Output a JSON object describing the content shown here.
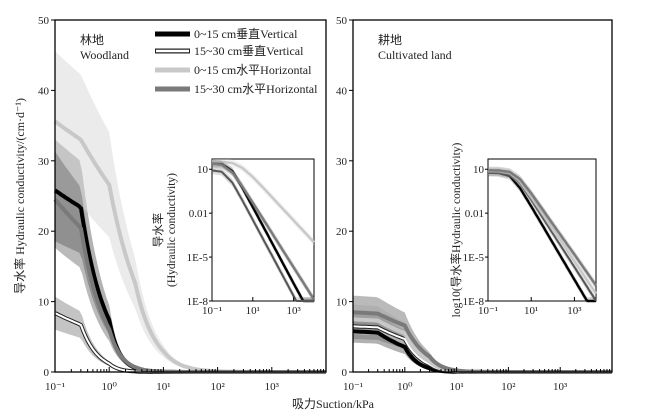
{
  "chart_data": {
    "type": "line",
    "xlabel": "吸力Suction/kPa",
    "ylabel": "导水率 Hydraulic conductivity/(cm·d⁻¹)",
    "x_scale": "log",
    "xlim": [
      0.1,
      10000
    ],
    "ylim": [
      0,
      50
    ],
    "y_ticks": [
      "0",
      "10",
      "20",
      "30",
      "40",
      "50"
    ],
    "x_ticks": [
      "10⁻¹",
      "10⁰",
      "10¹",
      "10²",
      "10³"
    ],
    "legend": [
      {
        "label": "0~15 cm垂直Vertical",
        "color": "#000000",
        "style": "solid"
      },
      {
        "label": "15~30 cm垂直Vertical",
        "color": "#ffffff",
        "style": "outlined"
      },
      {
        "label": "0~15 cm水平Horizontal",
        "color": "#c8c8c8",
        "style": "solid"
      },
      {
        "label": "15~30 cm水平Horizontal",
        "color": "#7a7a7a",
        "style": "solid"
      }
    ],
    "legend_position": "top-left",
    "x": [
      0.1,
      0.3,
      1,
      3,
      10,
      30,
      100,
      1000,
      5000
    ],
    "panels": [
      {
        "title_cn": "林地",
        "title_en": "Woodland",
        "inset": {
          "ylabel_lines": [
            "导水率",
            "(Hydraulic conductivity)"
          ],
          "y_scale": "log",
          "ylim": [
            1e-08,
            50
          ],
          "y_ticks": [
            "10",
            "0.01",
            "1E-5",
            "1E-8"
          ],
          "x_ticks": [
            "10⁻¹",
            "10¹",
            "10³"
          ]
        },
        "series": [
          {
            "name": "0~15 cm垂直Vertical",
            "values": [
              25.8,
              23.4,
              7.4,
              0.58,
              0.026,
              0.0015,
              6.5e-05,
              1.6e-07,
              2.6e-09
            ]
          },
          {
            "name": "15~30 cm垂直Vertical",
            "values": [
              8.37,
              6.72,
              1.2,
              0.08,
              0.0035,
              0.0002,
              8.9e-06,
              2.2e-08,
              3.4e-10
            ]
          },
          {
            "name": "0~15 cm水平Horizontal",
            "values": [
              35.6,
              33.0,
              26.6,
              12.7,
              2.95,
              0.61,
              0.1,
              0.0032,
              0.00029
            ]
          },
          {
            "name": "15~30 cm水平Horizontal",
            "values": [
              24.5,
              20.5,
              6.1,
              0.7,
              0.051,
              0.0046,
              0.00032,
              2e-06,
              5.8e-08
            ]
          }
        ]
      },
      {
        "title_cn": "耕地",
        "title_en": "Cultivated land",
        "inset": {
          "ylabel_lines": [
            "log10(导水率Hydraulic conductivity)"
          ],
          "y_scale": "log",
          "ylim": [
            1e-08,
            50
          ],
          "y_ticks": [
            "10",
            "0.01",
            "1E-5",
            "1E-8"
          ],
          "x_ticks": [
            "10⁻¹",
            "10¹",
            "10³"
          ]
        },
        "series": [
          {
            "name": "0~15 cm垂直Vertical",
            "values": [
              5.79,
              5.6,
              3.55,
              0.53,
              0.029,
              0.0019,
              9.2e-05,
              2.9e-07,
              5.3e-09
            ]
          },
          {
            "name": "15~30 cm垂直Vertical",
            "values": [
              6.49,
              6.34,
              4.67,
              1.1,
              0.082,
              0.0066,
              0.00041,
              2.1e-06,
              5.1e-08
            ]
          },
          {
            "name": "0~15 cm水平Horizontal",
            "values": [
              7.48,
              7.3,
              5.5,
              1.5,
              0.13,
              0.012,
              0.00084,
              5.3e-06,
              1.5e-07
            ]
          },
          {
            "name": "15~30 cm水平Horizontal",
            "values": [
              8.48,
              8.3,
              6.6,
              2.2,
              0.23,
              0.023,
              0.0018,
              1.5e-05,
              5e-07
            ]
          }
        ]
      }
    ]
  }
}
